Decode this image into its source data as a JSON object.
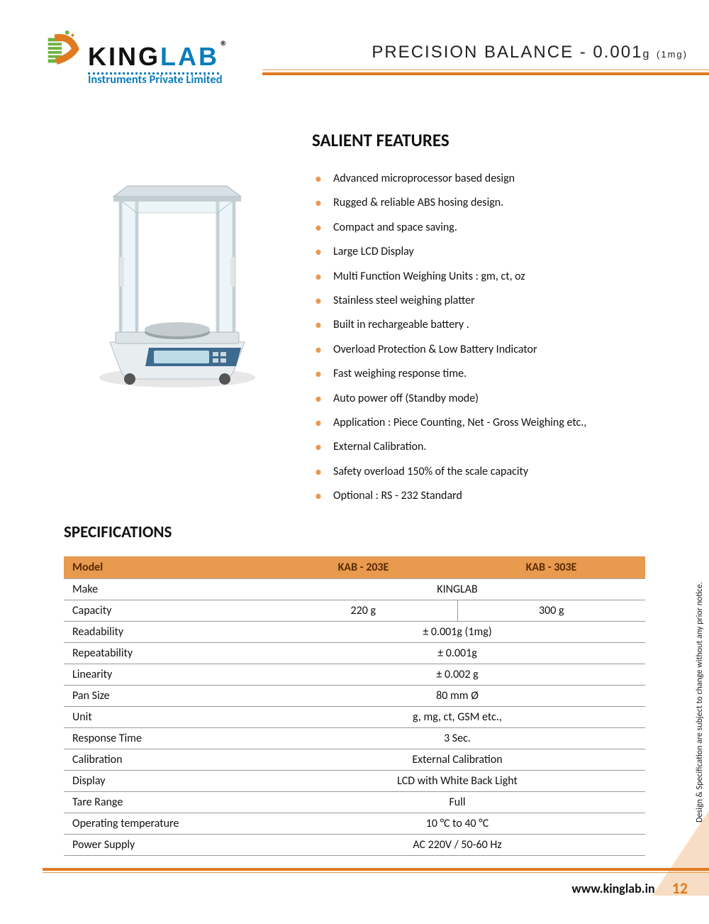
{
  "brand": {
    "name_part1": "KING",
    "name_part2": "LAB",
    "reg": "®",
    "tagline": "Instruments Private Limited",
    "colors": {
      "blue": "#0a7dbb",
      "orange": "#e07a1f",
      "green": "#6eb33f"
    }
  },
  "page": {
    "title_main": "PRECISION BALANCE - 0.001",
    "title_unit": "g",
    "title_paren": "(1mg)",
    "url": "www.kinglab.in",
    "number": "12",
    "side_note": "Design & Specification are subject to change without any prior notice."
  },
  "features": {
    "heading": "SALIENT FEATURES",
    "items": [
      "Advanced microprocessor based design",
      "Rugged & reliable ABS hosing design.",
      "Compact and space saving.",
      "Large LCD Display",
      "Multi Function  Weighing Units : gm, ct, oz",
      "Stainless steel weighing platter",
      "Built in rechargeable battery .",
      "Overload Protection & Low Battery Indicator",
      "Fast weighing response time.",
      "Auto power off (Standby mode)",
      "Application : Piece Counting, Net - Gross Weighing etc.,",
      "External Calibration.",
      "Safety overload 150% of the scale capacity",
      "Optional : RS - 232 Standard"
    ]
  },
  "specs": {
    "heading": "SPECIFICATIONS",
    "header_label": "Model",
    "models": [
      "KAB - 203E",
      "KAB - 303E"
    ],
    "rows": [
      {
        "label": "Make",
        "span": true,
        "value": "KINGLAB"
      },
      {
        "label": "Capacity",
        "span": false,
        "values": [
          "220 g",
          "300 g"
        ]
      },
      {
        "label": "Readability",
        "span": true,
        "value": "± 0.001g (1mg)"
      },
      {
        "label": "Repeatability",
        "span": true,
        "value": "± 0.001g"
      },
      {
        "label": "Linearity",
        "span": true,
        "value": "± 0.002 g"
      },
      {
        "label": "Pan Size",
        "span": true,
        "value": "80 mm Ø"
      },
      {
        "label": "Unit",
        "span": true,
        "value": "g, mg, ct, GSM etc.,"
      },
      {
        "label": "Response Time",
        "span": true,
        "value": "3 Sec."
      },
      {
        "label": "Calibration",
        "span": true,
        "value": "External Calibration"
      },
      {
        "label": "Display",
        "span": true,
        "value": "LCD with White Back Light"
      },
      {
        "label": "Tare Range",
        "span": true,
        "value": "Full"
      },
      {
        "label": "Operating temperature",
        "span": true,
        "value": "10 °C to 40 °C"
      },
      {
        "label": "Power Supply",
        "span": true,
        "value": "AC 220V / 50-60 Hz"
      }
    ],
    "style": {
      "header_bg": "#e89a4f",
      "header_fg": "#5b2b00",
      "border_color": "#999999",
      "font_size_pt": 12
    }
  }
}
